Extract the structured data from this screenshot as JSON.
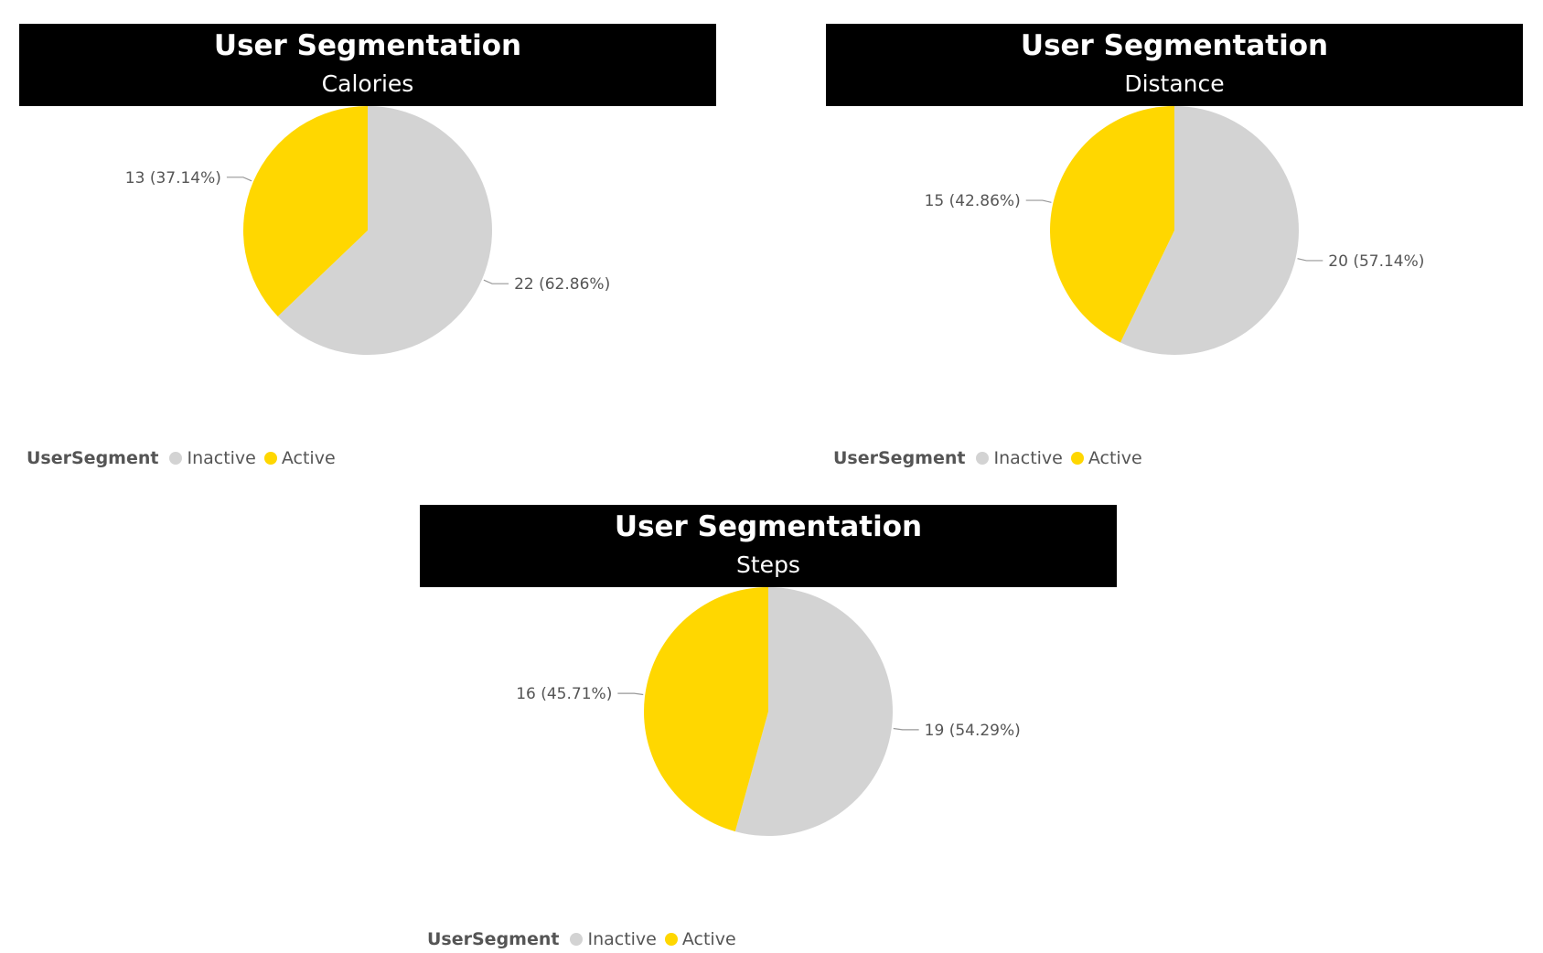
{
  "chart_data": [
    {
      "type": "pie",
      "title": "User Segmentation",
      "subtitle": "Calories",
      "legend_title": "UserSegment",
      "categories": [
        "Inactive",
        "Active"
      ],
      "values": [
        22,
        13
      ],
      "percent_labels": [
        "22 (62.86%)",
        "13 (37.14%)"
      ],
      "colors": [
        "#d3d3d3",
        "#ffd700"
      ],
      "legend_position": "bottom-left"
    },
    {
      "type": "pie",
      "title": "User Segmentation",
      "subtitle": "Distance",
      "legend_title": "UserSegment",
      "categories": [
        "Inactive",
        "Active"
      ],
      "values": [
        20,
        15
      ],
      "percent_labels": [
        "20 (57.14%)",
        "15 (42.86%)"
      ],
      "colors": [
        "#d3d3d3",
        "#ffd700"
      ],
      "legend_position": "bottom-left"
    },
    {
      "type": "pie",
      "title": "User Segmentation",
      "subtitle": "Steps",
      "legend_title": "UserSegment",
      "categories": [
        "Inactive",
        "Active"
      ],
      "values": [
        19,
        16
      ],
      "percent_labels": [
        "19 (54.29%)",
        "16 (45.71%)"
      ],
      "colors": [
        "#d3d3d3",
        "#ffd700"
      ],
      "legend_position": "bottom-left"
    }
  ]
}
